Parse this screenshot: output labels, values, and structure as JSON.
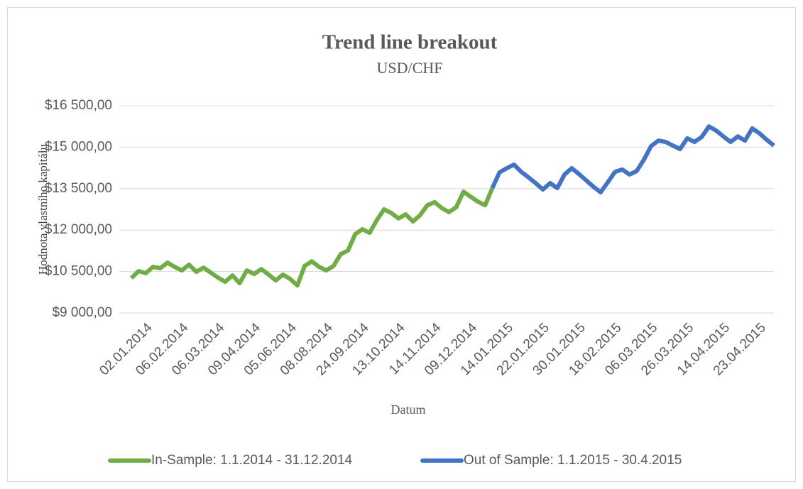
{
  "chart_data": {
    "type": "line",
    "title": "Trend line breakout",
    "subtitle": "USD/CHF",
    "y_label": "Hodnota vlastního kapitálu",
    "x_label": "Datum",
    "categories": [
      null,
      null,
      null,
      "02.01.2014",
      null,
      null,
      null,
      null,
      "06.02.2014",
      null,
      null,
      null,
      null,
      "06.03.2014",
      null,
      null,
      null,
      null,
      "09.04.2014",
      null,
      null,
      null,
      null,
      "05.06.2014",
      null,
      null,
      null,
      null,
      "08.08.2014",
      null,
      null,
      null,
      null,
      "24.09.2014",
      null,
      null,
      null,
      null,
      "13.10.2014",
      null,
      null,
      null,
      null,
      "14.11.2014",
      null,
      null,
      null,
      null,
      "09.12.2014",
      null,
      null,
      null,
      null,
      "14.01.2015",
      null,
      null,
      null,
      null,
      "22.01.2015",
      null,
      null,
      null,
      null,
      "30.01.2015",
      null,
      null,
      null,
      null,
      "18.02.2015",
      null,
      null,
      null,
      null,
      "06.03.2015",
      null,
      null,
      null,
      null,
      "26.03.2015",
      null,
      null,
      null,
      null,
      "14.04.2015",
      null,
      null,
      null,
      null,
      "23.04.2015",
      null
    ],
    "series": [
      {
        "name": "In-Sample: 1.1.2014 - 31.12.2014",
        "color": "#70ad47",
        "values": [
          10260,
          10515,
          10440,
          10670,
          10620,
          10820,
          10670,
          10540,
          10750,
          10490,
          10640,
          10460,
          10280,
          10130,
          10360,
          10080,
          10540,
          10410,
          10590,
          10390,
          10180,
          10390,
          10230,
          10000,
          10700,
          10870,
          10670,
          10540,
          10700,
          11130,
          11260,
          11850,
          12030,
          11900,
          12360,
          12750,
          12620,
          12420,
          12570,
          12310,
          12540,
          12900,
          13010,
          12800,
          12650,
          12830,
          13390,
          13210,
          13030,
          12900,
          13520,
          null,
          null,
          null,
          null,
          null,
          null,
          null,
          null,
          null,
          null,
          null,
          null,
          null,
          null,
          null,
          null,
          null,
          null,
          null,
          null,
          null,
          null,
          null,
          null,
          null,
          null,
          null,
          null,
          null,
          null,
          null,
          null,
          null,
          null,
          null,
          null,
          null,
          null,
          null
        ]
      },
      {
        "name": "Out of Sample: 1.1.2015 - 30.4.2015",
        "color": "#4472c4",
        "values": [
          null,
          null,
          null,
          null,
          null,
          null,
          null,
          null,
          null,
          null,
          null,
          null,
          null,
          null,
          null,
          null,
          null,
          null,
          null,
          null,
          null,
          null,
          null,
          null,
          null,
          null,
          null,
          null,
          null,
          null,
          null,
          null,
          null,
          null,
          null,
          null,
          null,
          null,
          null,
          null,
          null,
          null,
          null,
          null,
          null,
          null,
          null,
          null,
          null,
          null,
          13520,
          14090,
          14240,
          14370,
          14110,
          13910,
          13700,
          13470,
          13700,
          13520,
          14010,
          14240,
          14030,
          13800,
          13570,
          13370,
          13730,
          14110,
          14190,
          14010,
          14140,
          14550,
          15040,
          15240,
          15190,
          15060,
          14930,
          15320,
          15190,
          15370,
          15750,
          15600,
          15390,
          15190,
          15390,
          15240,
          15680,
          15500,
          15270,
          15060
        ]
      }
    ],
    "ylim": [
      9000,
      16500
    ],
    "yticks": [
      {
        "value": 9000,
        "label": "$9 000,00"
      },
      {
        "value": 10500,
        "label": "$10 500,00"
      },
      {
        "value": 12000,
        "label": "$12 000,00"
      },
      {
        "value": 13500,
        "label": "$13 500,00"
      },
      {
        "value": 15000,
        "label": "$15 000,00"
      },
      {
        "value": 16500,
        "label": "$16 500,00"
      }
    ],
    "grid": true,
    "legend": "bottom"
  }
}
